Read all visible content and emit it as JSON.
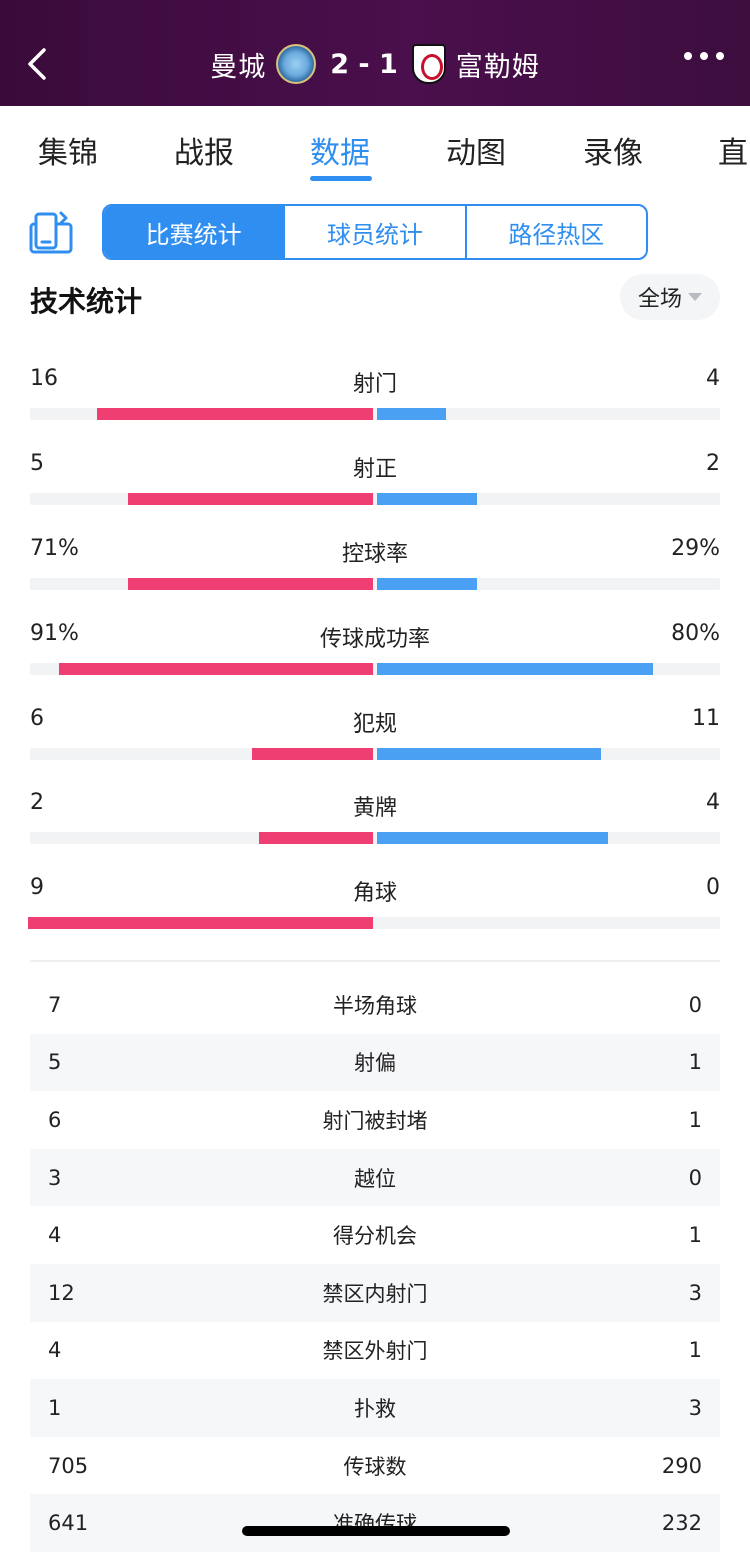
{
  "header": {
    "home_team": "曼城",
    "score": "2 - 1",
    "away_team": "富勒姆",
    "colors": {
      "background": "#3a0b3a"
    }
  },
  "tabs": [
    {
      "label": "集锦"
    },
    {
      "label": "战报"
    },
    {
      "label": "数据",
      "active": true
    },
    {
      "label": "动图"
    },
    {
      "label": "录像"
    },
    {
      "label": "直"
    }
  ],
  "segment": [
    {
      "label": "比赛统计",
      "active": true
    },
    {
      "label": "球员统计"
    },
    {
      "label": "路径热区"
    }
  ],
  "section": {
    "title": "技术统计",
    "period": "全场"
  },
  "bar_stats": [
    {
      "label": "射门",
      "home": "16",
      "away": "4",
      "home_bar": 0.8,
      "away_bar": 0.2
    },
    {
      "label": "射正",
      "home": "5",
      "away": "2",
      "home_bar": 0.71,
      "away_bar": 0.29
    },
    {
      "label": "控球率",
      "home": "71%",
      "away": "29%",
      "home_bar": 0.71,
      "away_bar": 0.29
    },
    {
      "label": "传球成功率",
      "home": "91%",
      "away": "80%",
      "home_bar": 0.91,
      "away_bar": 0.8
    },
    {
      "label": "犯规",
      "home": "6",
      "away": "11",
      "home_bar": 0.35,
      "away_bar": 0.65
    },
    {
      "label": "黄牌",
      "home": "2",
      "away": "4",
      "home_bar": 0.33,
      "away_bar": 0.67
    },
    {
      "label": "角球",
      "home": "9",
      "away": "0",
      "home_bar": 1.0,
      "away_bar": 0.0
    }
  ],
  "table": [
    {
      "home": "7",
      "label": "半场角球",
      "away": "0"
    },
    {
      "home": "5",
      "label": "射偏",
      "away": "1"
    },
    {
      "home": "6",
      "label": "射门被封堵",
      "away": "1"
    },
    {
      "home": "3",
      "label": "越位",
      "away": "0"
    },
    {
      "home": "4",
      "label": "得分机会",
      "away": "1"
    },
    {
      "home": "12",
      "label": "禁区内射门",
      "away": "3"
    },
    {
      "home": "4",
      "label": "禁区外射门",
      "away": "1"
    },
    {
      "home": "1",
      "label": "扑救",
      "away": "3"
    },
    {
      "home": "705",
      "label": "传球数",
      "away": "290"
    },
    {
      "home": "641",
      "label": "准确传球",
      "away": "232"
    }
  ],
  "colors": {
    "home_bar": "#ef3e72",
    "away_bar": "#4aa0f2",
    "accent": "#2f8ef0"
  }
}
